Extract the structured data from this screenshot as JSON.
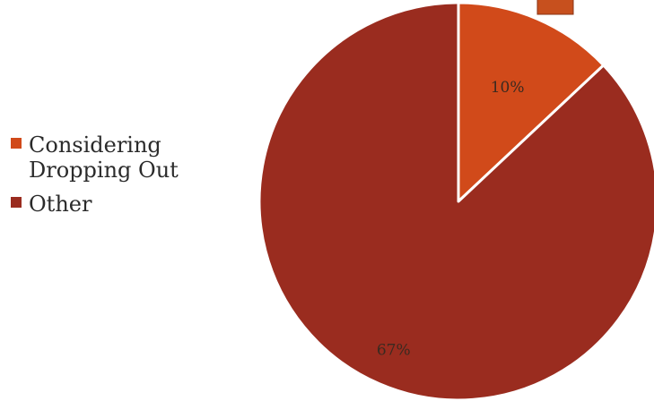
{
  "chart_data": {
    "type": "pie",
    "title": "",
    "slices": [
      {
        "label": "Considering Dropping Out",
        "value": 10,
        "display": "10%",
        "color": "#D14A1A"
      },
      {
        "label": "Other",
        "value": 67,
        "display": "67%",
        "color": "#9A2C1F"
      }
    ],
    "legend_position": "left",
    "start_angle_deg": 0,
    "direction": "clockwise"
  },
  "colors": {
    "slice_border": "#ffffff",
    "label_text": "#3a2a20",
    "decoration": "#C7501E"
  }
}
